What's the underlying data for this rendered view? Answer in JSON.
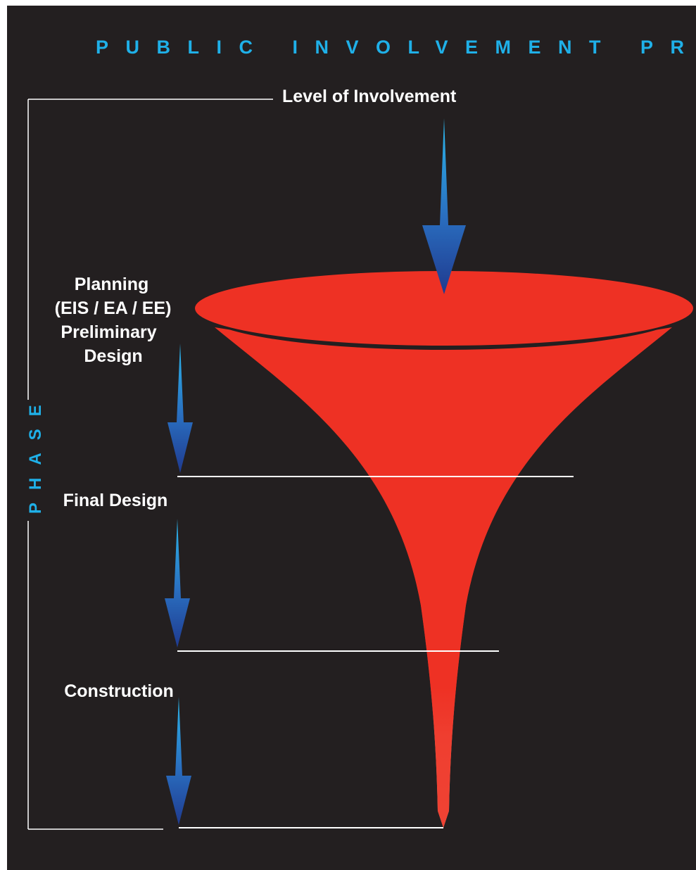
{
  "title": "PUBLIC INVOLVEMENT PROCESS",
  "involvement_label": "Level of Involvement",
  "phase_label": "PHASE",
  "phases": [
    {
      "lines": [
        "Planning",
        "(EIS / EA / EE)",
        "Preliminary",
        "Design"
      ]
    },
    {
      "lines": [
        "Final Design"
      ]
    },
    {
      "lines": [
        "Construction"
      ]
    }
  ],
  "colors": {
    "background": "#231f20",
    "title": "#1fb0e8",
    "funnel": "#ee3124",
    "funnel_highlight": "#f8a68a",
    "arrow_top": "#2aa8e0",
    "arrow_bottom": "#1f3f94",
    "lines": "#ffffff"
  }
}
